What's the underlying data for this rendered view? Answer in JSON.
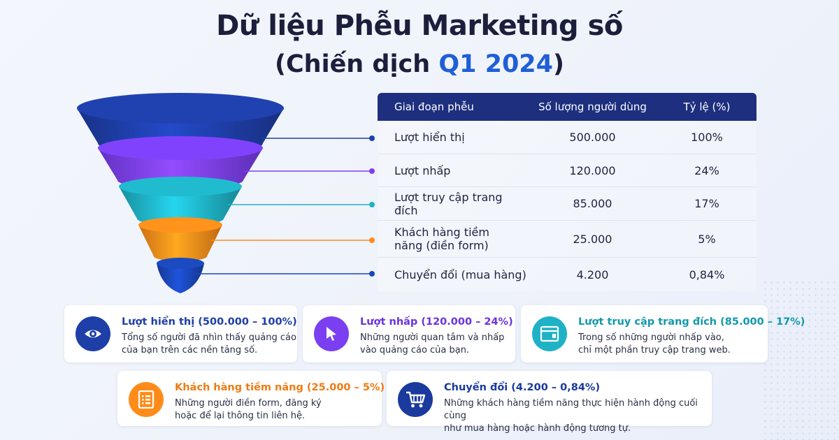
{
  "header": {
    "title": "Dữ liệu Phễu Marketing số",
    "subtitle_open": "(Chiến dịch ",
    "subtitle_highlight": "Q1 2024",
    "subtitle_close": ")"
  },
  "table": {
    "headers": [
      "Giai đoạn phễu",
      "Số lượng người dùng",
      "Tỷ lệ (%)"
    ],
    "rows": [
      {
        "stage": "Lượt hiển thị",
        "count": "500.000",
        "pct": "100%"
      },
      {
        "stage": "Lượt nhấp",
        "count": "120.000",
        "pct": "24%"
      },
      {
        "stage": "Lượt truy cập trang đích",
        "count": "85.000",
        "pct": "17%"
      },
      {
        "stage": "Khách hàng tiềm năng (điền form)",
        "count": "25.000",
        "pct": "5%"
      },
      {
        "stage": "Chuyển đổi (mua hàng)",
        "count": "4.200",
        "pct": "0,84%"
      }
    ]
  },
  "chart_data": {
    "type": "funnel",
    "title": "Dữ liệu Phễu Marketing số (Chiến dịch Q1 2024)",
    "categories": [
      "Lượt hiển thị",
      "Lượt nhấp",
      "Lượt truy cập trang đích",
      "Khách hàng tiềm năng (điền form)",
      "Chuyển đổi (mua hàng)"
    ],
    "values": [
      500000,
      120000,
      85000,
      25000,
      4200
    ],
    "percentages": [
      100,
      24,
      17,
      5,
      0.84
    ],
    "colors": [
      "#1e3ea8",
      "#7b3ff2",
      "#1fb2c6",
      "#ff8c1a",
      "#1a46b8"
    ]
  },
  "cards": [
    {
      "title": "Lượt hiển thị (500.000 – 100%)",
      "desc": "Tổng số người đã nhìn thấy quảng cáo\ncủa bạn trên các nền tảng số.",
      "color": "#1e3ea8",
      "icon": "eye-icon"
    },
    {
      "title": "Lượt nhấp (120.000 – 24%)",
      "desc": "Những người quan tâm và nhấp\nvào quảng cáo của bạn.",
      "color": "#7b3ff2",
      "icon": "cursor-icon"
    },
    {
      "title": "Lượt truy cập trang đích (85.000 – 17%)",
      "desc": "Trong số những người nhấp vào,\nchỉ một phần truy cập trang web.",
      "color": "#1fa7b8",
      "icon": "browser-window-icon"
    },
    {
      "title": "Khách hàng tiềm năng (25.000 – 5%)",
      "desc": "Những người điền form, đăng ký\nhoặc để lại thông tin liên hệ.",
      "color": "#f07b12",
      "icon": "form-list-icon"
    },
    {
      "title": "Chuyển đổi (4.200 – 0,84%)",
      "desc": "Những khách hàng tiềm năng thực hiện hành động cuối cùng\nnhư mua hàng hoặc hành động tương tự.",
      "color": "#1a3a9e",
      "icon": "shopping-cart-icon"
    }
  ]
}
